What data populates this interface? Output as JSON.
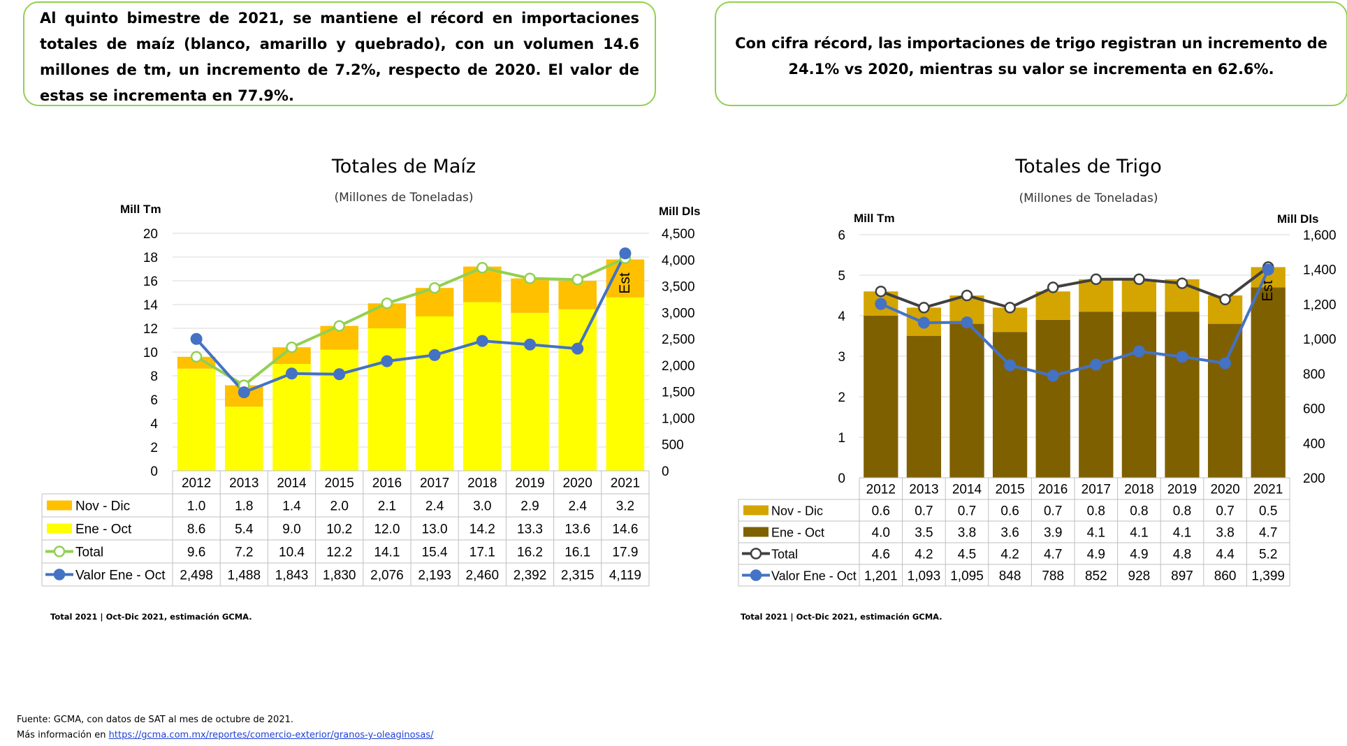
{
  "callouts": {
    "left": "Al quinto bimestre de 2021, se mantiene el récord en importaciones totales de maíz (blanco, amarillo y quebrado), con un volumen 14.6 millones de  tm, un incremento de 7.2%, respecto de 2020. El valor de estas se incrementa en 77.9%.",
    "right": "Con cifra récord, las importaciones de trigo registran un incremento de 24.1% vs 2020, mientras su valor se incrementa en 62.6%."
  },
  "notes": {
    "left": "Total 2021 | Oct-Dic 2021, estimación GCMA.",
    "right": "Total 2021 | Oct-Dic 2021, estimación GCMA."
  },
  "footer": {
    "line1": "Fuente: GCMA, con datos de SAT al mes de octubre de 2021.",
    "line2_prefix": "Más información en ",
    "link": "https://gcma.com.mx/reportes/comercio-exterior/granos-y-oleaginosas/"
  },
  "chart_data": [
    {
      "type": "bar",
      "title": "Totales de Maíz",
      "subtitle": "(Millones de Toneladas)",
      "ylabel": "Mill Tm",
      "y2label": "Mill Dls",
      "ylim": [
        0,
        20
      ],
      "yticks": [
        0,
        2,
        4,
        6,
        8,
        10,
        12,
        14,
        16,
        18,
        20
      ],
      "y2lim": [
        0,
        4500
      ],
      "y2ticks": [
        "0",
        "500",
        "1,000",
        "1,500",
        "2,000",
        "2,500",
        "3,000",
        "3,500",
        "4,000",
        "4,500"
      ],
      "grid": true,
      "annotation": "Est",
      "categories": [
        "2012",
        "2013",
        "2014",
        "2015",
        "2016",
        "2017",
        "2018",
        "2019",
        "2020",
        "2021"
      ],
      "series": [
        {
          "name": "Nov - Dic",
          "kind": "bar",
          "color": "#ffc000",
          "values": [
            1.0,
            1.8,
            1.4,
            2.0,
            2.1,
            2.4,
            3.0,
            2.9,
            2.4,
            3.2
          ],
          "labels": [
            "1.0",
            "1.8",
            "1.4",
            "2.0",
            "2.1",
            "2.4",
            "3.0",
            "2.9",
            "2.4",
            "3.2"
          ]
        },
        {
          "name": "Ene - Oct",
          "kind": "bar",
          "color": "#ffff00",
          "values": [
            8.6,
            5.4,
            9.0,
            10.2,
            12.0,
            13.0,
            14.2,
            13.3,
            13.6,
            14.6
          ],
          "labels": [
            "8.6",
            "5.4",
            "9.0",
            "10.2",
            "12.0",
            "13.0",
            "14.2",
            "13.3",
            "13.6",
            "14.6"
          ]
        },
        {
          "name": "Total",
          "kind": "line",
          "axis": "left",
          "color": "#92d050",
          "marker": "open",
          "values": [
            9.6,
            7.2,
            10.4,
            12.2,
            14.1,
            15.4,
            17.1,
            16.2,
            16.1,
            17.9
          ],
          "labels": [
            "9.6",
            "7.2",
            "10.4",
            "12.2",
            "14.1",
            "15.4",
            "17.1",
            "16.2",
            "16.1",
            "17.9"
          ]
        },
        {
          "name": "Valor Ene - Oct",
          "kind": "line",
          "axis": "right",
          "color": "#4472c4",
          "marker": "filled",
          "values": [
            2498,
            1488,
            1843,
            1830,
            2076,
            2193,
            2460,
            2392,
            2315,
            4119
          ],
          "labels": [
            "2,498",
            "1,488",
            "1,843",
            "1,830",
            "2,076",
            "2,193",
            "2,460",
            "2,392",
            "2,315",
            "4,119"
          ]
        }
      ]
    },
    {
      "type": "bar",
      "title": "Totales de Trigo",
      "subtitle": "(Millones de Toneladas)",
      "ylabel": "Mill Tm",
      "y2label": "Mill Dls",
      "ylim": [
        0,
        6
      ],
      "yticks": [
        0,
        1,
        2,
        3,
        4,
        5,
        6
      ],
      "y2lim": [
        200,
        1600
      ],
      "y2ticks": [
        "200",
        "400",
        "600",
        "800",
        "1,000",
        "1,200",
        "1,400",
        "1,600"
      ],
      "grid": true,
      "annotation": "Est",
      "categories": [
        "2012",
        "2013",
        "2014",
        "2015",
        "2016",
        "2017",
        "2018",
        "2019",
        "2020",
        "2021"
      ],
      "series": [
        {
          "name": "Nov - Dic",
          "kind": "bar",
          "color": "#d4a500",
          "values": [
            0.6,
            0.7,
            0.7,
            0.6,
            0.7,
            0.8,
            0.8,
            0.8,
            0.7,
            0.5
          ],
          "labels": [
            "0.6",
            "0.7",
            "0.7",
            "0.6",
            "0.7",
            "0.8",
            "0.8",
            "0.8",
            "0.7",
            "0.5"
          ]
        },
        {
          "name": "Ene - Oct",
          "kind": "bar",
          "color": "#7f6000",
          "values": [
            4.0,
            3.5,
            3.8,
            3.6,
            3.9,
            4.1,
            4.1,
            4.1,
            3.8,
            4.7
          ],
          "labels": [
            "4.0",
            "3.5",
            "3.8",
            "3.6",
            "3.9",
            "4.1",
            "4.1",
            "4.1",
            "3.8",
            "4.7"
          ]
        },
        {
          "name": "Total",
          "kind": "line",
          "axis": "left",
          "color": "#404040",
          "marker": "open",
          "values": [
            4.6,
            4.2,
            4.5,
            4.2,
            4.7,
            4.9,
            4.9,
            4.8,
            4.4,
            5.2
          ],
          "labels": [
            "4.6",
            "4.2",
            "4.5",
            "4.2",
            "4.7",
            "4.9",
            "4.9",
            "4.8",
            "4.4",
            "5.2"
          ]
        },
        {
          "name": "Valor Ene - Oct",
          "kind": "line",
          "axis": "right",
          "color": "#4472c4",
          "marker": "filled",
          "values": [
            1201,
            1093,
            1095,
            848,
            788,
            852,
            928,
            897,
            860,
            1399
          ],
          "labels": [
            "1,201",
            "1,093",
            "1,095",
            "848",
            "788",
            "852",
            "928",
            "897",
            "860",
            "1,399"
          ]
        }
      ]
    }
  ]
}
